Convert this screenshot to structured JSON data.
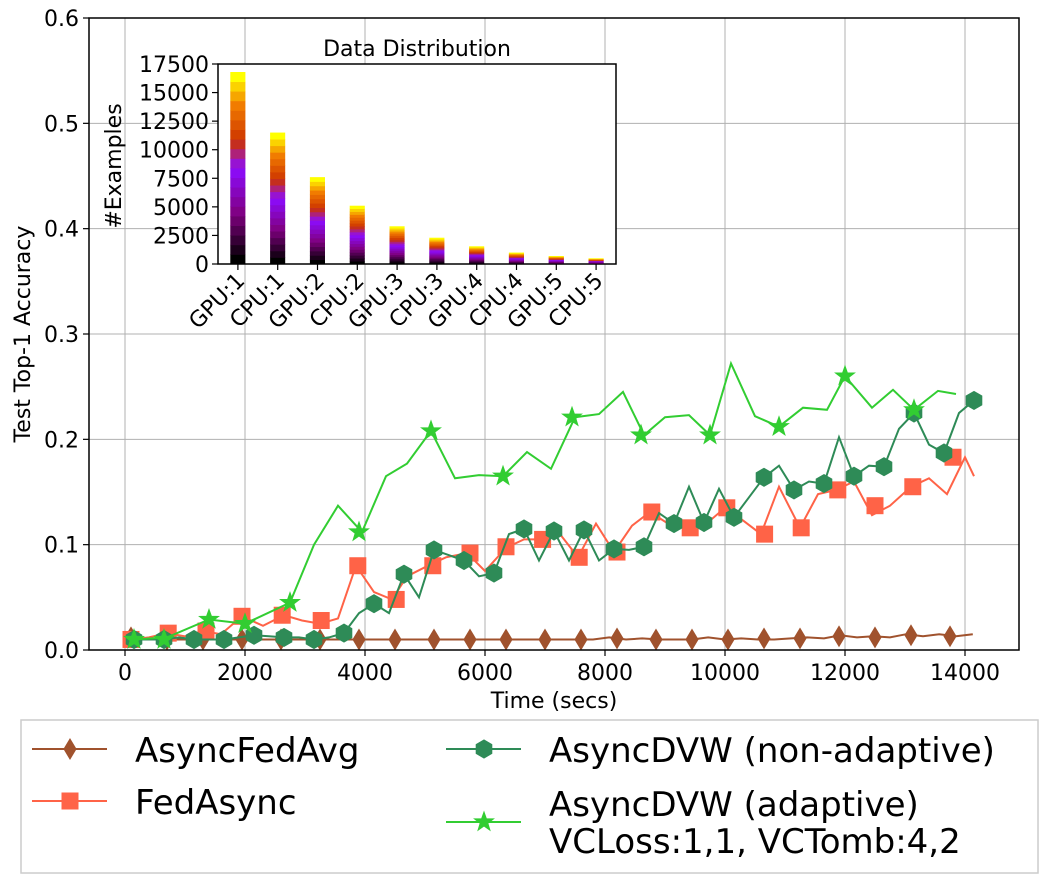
{
  "chart_data": [
    {
      "type": "line",
      "xlabel": "Time (secs)",
      "ylabel": "Test Top-1 Accuracy",
      "xlim": [
        -600,
        14900
      ],
      "ylim": [
        0,
        0.6
      ],
      "xticks": [
        0,
        2000,
        4000,
        6000,
        8000,
        10000,
        12000,
        14000
      ],
      "xtick_labels": [
        "0",
        "2000",
        "4000",
        "6000",
        "8000",
        "10000",
        "12000",
        "14000"
      ],
      "yticks": [
        0.0,
        0.1,
        0.2,
        0.3,
        0.4,
        0.5,
        0.6
      ],
      "ytick_labels": [
        "0.0",
        "0.1",
        "0.2",
        "0.3",
        "0.4",
        "0.5",
        "0.6"
      ],
      "grid": true,
      "legend_position": "below",
      "series": [
        {
          "name": "AsyncFedAvg",
          "color": "#a0522d",
          "marker": "diamond",
          "x": [
            100,
            370,
            650,
            920,
            1200,
            1470,
            1750,
            2020,
            2300,
            2570,
            2850,
            3120,
            3400,
            3670,
            3950,
            4220,
            4500,
            4770,
            5050,
            5320,
            5600,
            5870,
            6150,
            6420,
            6700,
            6970,
            7250,
            7520,
            7800,
            8070,
            8350,
            8620,
            8900,
            9170,
            9450,
            9720,
            10000,
            10270,
            10550,
            10820,
            11100,
            11370,
            11650,
            11920,
            12200,
            12470,
            12750,
            13020,
            13300,
            13570,
            13850,
            14130
          ],
          "y": [
            0.012,
            0.01,
            0.01,
            0.01,
            0.01,
            0.01,
            0.01,
            0.01,
            0.01,
            0.01,
            0.01,
            0.01,
            0.01,
            0.01,
            0.01,
            0.01,
            0.01,
            0.01,
            0.01,
            0.01,
            0.01,
            0.01,
            0.01,
            0.01,
            0.01,
            0.01,
            0.01,
            0.01,
            0.01,
            0.012,
            0.01,
            0.011,
            0.01,
            0.01,
            0.01,
            0.012,
            0.01,
            0.011,
            0.01,
            0.01,
            0.011,
            0.012,
            0.011,
            0.014,
            0.012,
            0.013,
            0.012,
            0.015,
            0.013,
            0.015,
            0.013,
            0.015
          ],
          "marker_x": [
            100,
            700,
            1300,
            1950,
            2600,
            3250,
            3900,
            4500,
            5150,
            5750,
            6350,
            7000,
            7600,
            8200,
            8850,
            9450,
            10050,
            10650,
            11250,
            11900,
            12500,
            13100,
            13750
          ],
          "marker_y": [
            0.012,
            0.01,
            0.01,
            0.01,
            0.01,
            0.01,
            0.01,
            0.01,
            0.01,
            0.01,
            0.01,
            0.01,
            0.01,
            0.011,
            0.01,
            0.01,
            0.01,
            0.011,
            0.011,
            0.013,
            0.012,
            0.014,
            0.013
          ]
        },
        {
          "name": "FedAsync",
          "color": "#ff6347",
          "marker": "square",
          "x": [
            100,
            400,
            700,
            1000,
            1300,
            1600,
            1950,
            2300,
            2650,
            2950,
            3250,
            3550,
            3850,
            4150,
            4450,
            4700,
            5050,
            5350,
            5700,
            6000,
            6350,
            6650,
            6950,
            7250,
            7550,
            7850,
            8150,
            8450,
            8750,
            9050,
            9350,
            9650,
            10000,
            10300,
            10600,
            10900,
            11250,
            11550,
            11850,
            12150,
            12450,
            12750,
            13100,
            13400,
            13700,
            14000,
            14150
          ],
          "y": [
            0.01,
            0.012,
            0.016,
            0.013,
            0.018,
            0.015,
            0.032,
            0.023,
            0.033,
            0.028,
            0.025,
            0.03,
            0.08,
            0.055,
            0.048,
            0.07,
            0.08,
            0.088,
            0.092,
            0.075,
            0.097,
            0.105,
            0.105,
            0.11,
            0.088,
            0.12,
            0.093,
            0.118,
            0.131,
            0.12,
            0.116,
            0.118,
            0.135,
            0.123,
            0.11,
            0.155,
            0.116,
            0.148,
            0.152,
            0.16,
            0.128,
            0.137,
            0.155,
            0.163,
            0.148,
            0.183,
            0.165
          ],
          "marker_x": [
            100,
            720,
            1350,
            1950,
            2620,
            3270,
            3880,
            4520,
            5130,
            5750,
            6350,
            6960,
            7570,
            8200,
            8780,
            9420,
            10030,
            10660,
            11270,
            11880,
            12500,
            13130,
            13800
          ],
          "marker_y": [
            0.01,
            0.016,
            0.018,
            0.032,
            0.033,
            0.028,
            0.08,
            0.048,
            0.08,
            0.092,
            0.098,
            0.105,
            0.088,
            0.093,
            0.131,
            0.116,
            0.135,
            0.11,
            0.116,
            0.152,
            0.137,
            0.155,
            0.183
          ]
        },
        {
          "name": "AsyncDVW (non-adaptive)",
          "color": "#2e8b57",
          "marker": "hexagon",
          "x": [
            150,
            400,
            650,
            900,
            1150,
            1400,
            1650,
            1900,
            2150,
            2400,
            2650,
            2900,
            3150,
            3400,
            3650,
            3900,
            4150,
            4400,
            4650,
            4900,
            5150,
            5400,
            5650,
            5900,
            6150,
            6400,
            6650,
            6900,
            7150,
            7400,
            7650,
            7900,
            8150,
            8400,
            8650,
            8900,
            9150,
            9400,
            9650,
            9900,
            10150,
            10400,
            10650,
            10900,
            11150,
            11400,
            11650,
            11900,
            12150,
            12400,
            12650,
            12900,
            13150,
            13400,
            13650,
            13900,
            14150
          ],
          "y": [
            0.01,
            0.01,
            0.01,
            0.012,
            0.01,
            0.01,
            0.01,
            0.012,
            0.014,
            0.013,
            0.012,
            0.012,
            0.01,
            0.012,
            0.016,
            0.035,
            0.044,
            0.035,
            0.072,
            0.05,
            0.095,
            0.09,
            0.085,
            0.07,
            0.073,
            0.11,
            0.115,
            0.085,
            0.113,
            0.085,
            0.114,
            0.085,
            0.096,
            0.095,
            0.098,
            0.13,
            0.12,
            0.155,
            0.121,
            0.153,
            0.126,
            0.145,
            0.164,
            0.175,
            0.152,
            0.16,
            0.158,
            0.202,
            0.165,
            0.175,
            0.174,
            0.21,
            0.225,
            0.195,
            0.187,
            0.225,
            0.237
          ],
          "marker_x": [
            150,
            650,
            1150,
            1650,
            2150,
            2650,
            3150,
            3650,
            4150,
            4650,
            5150,
            5650,
            6150,
            6650,
            7150,
            7650,
            8150,
            8650,
            9150,
            9650,
            10150,
            10650,
            11150,
            11650,
            12150,
            12650,
            13150,
            13650,
            14150
          ],
          "marker_y": [
            0.01,
            0.01,
            0.01,
            0.01,
            0.014,
            0.012,
            0.01,
            0.016,
            0.044,
            0.072,
            0.095,
            0.085,
            0.073,
            0.115,
            0.113,
            0.114,
            0.096,
            0.098,
            0.12,
            0.121,
            0.126,
            0.164,
            0.152,
            0.158,
            0.165,
            0.174,
            0.225,
            0.187,
            0.237
          ]
        },
        {
          "name": "AsyncDVW (adaptive)\nVCLoss:1,1, VCTomb:4,2",
          "color": "#32cd32",
          "marker": "star",
          "x": [
            150,
            700,
            1400,
            2000,
            2750,
            3150,
            3550,
            3950,
            4350,
            4700,
            5100,
            5500,
            5900,
            6300,
            6700,
            7100,
            7500,
            7900,
            8300,
            8650,
            9000,
            9400,
            9750,
            10100,
            10500,
            10900,
            11300,
            11700,
            12000,
            12450,
            12800,
            13150,
            13550,
            13850
          ],
          "y": [
            0.01,
            0.012,
            0.029,
            0.025,
            0.045,
            0.1,
            0.137,
            0.112,
            0.165,
            0.177,
            0.208,
            0.163,
            0.166,
            0.165,
            0.188,
            0.172,
            0.221,
            0.224,
            0.245,
            0.204,
            0.221,
            0.223,
            0.204,
            0.272,
            0.222,
            0.212,
            0.23,
            0.228,
            0.26,
            0.23,
            0.247,
            0.228,
            0.246,
            0.243
          ],
          "marker_x": [
            150,
            650,
            1400,
            2000,
            2750,
            3900,
            5100,
            6300,
            7450,
            8600,
            9750,
            10900,
            12000,
            13150
          ],
          "marker_y": [
            0.01,
            0.01,
            0.029,
            0.025,
            0.045,
            0.112,
            0.208,
            0.165,
            0.221,
            0.204,
            0.204,
            0.212,
            0.26,
            0.228
          ]
        }
      ]
    },
    {
      "type": "bar",
      "title": "Data Distribution",
      "ylabel": "#Examples",
      "categories": [
        "GPU:1",
        "CPU:1",
        "GPU:2",
        "CPU:2",
        "GPU:3",
        "CPU:3",
        "GPU:4",
        "CPU:4",
        "GPU:5",
        "CPU:5"
      ],
      "values": [
        16800,
        11500,
        7600,
        5100,
        3300,
        2300,
        1550,
        1000,
        700,
        500
      ],
      "stacked": true,
      "colormap": "gnuplot",
      "ylim": [
        0,
        17500
      ],
      "yticks": [
        0,
        2500,
        5000,
        7500,
        10000,
        12500,
        15000,
        17500
      ],
      "ytick_labels": [
        "0",
        "2500",
        "5000",
        "7500",
        "10000",
        "12500",
        "15000",
        "17500"
      ]
    }
  ],
  "legend": {
    "entries": [
      {
        "label_lines": [
          "AsyncFedAvg"
        ],
        "color": "#a0522d",
        "marker": "diamond"
      },
      {
        "label_lines": [
          "FedAsync"
        ],
        "color": "#ff6347",
        "marker": "square"
      },
      {
        "label_lines": [
          "AsyncDVW (non-adaptive)"
        ],
        "color": "#2e8b57",
        "marker": "hexagon"
      },
      {
        "label_lines": [
          "AsyncDVW (adaptive)",
          "VCLoss:1,1, VCTomb:4,2"
        ],
        "color": "#32cd32",
        "marker": "star"
      }
    ]
  }
}
